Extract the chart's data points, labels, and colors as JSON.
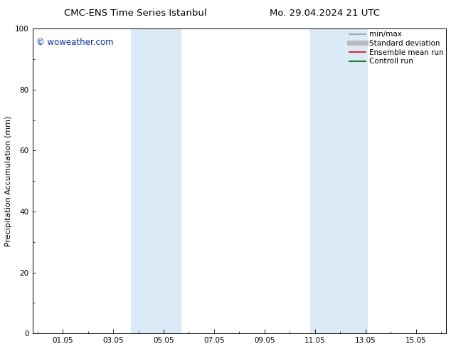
{
  "title_left": "CMC-ENS Time Series Istanbul",
  "title_right": "Mo. 29.04.2024 21 UTC",
  "ylabel": "Precipitation Accumulation (mm)",
  "ylim": [
    0,
    100
  ],
  "yticks": [
    0,
    20,
    40,
    60,
    80,
    100
  ],
  "background_color": "#ffffff",
  "plot_bg_color": "#ffffff",
  "watermark": "© woweather.com",
  "watermark_color": "#0033cc",
  "shaded_bands": [
    {
      "xstart": 3.7,
      "xend": 5.7
    },
    {
      "xstart": 10.8,
      "xend": 13.1
    }
  ],
  "shade_color": "#daeaf7",
  "shade_alpha": 1.0,
  "xtick_labels": [
    "01.05",
    "03.05",
    "05.05",
    "07.05",
    "09.05",
    "11.05",
    "13.05",
    "15.05"
  ],
  "xtick_positions": [
    1.0,
    3.0,
    5.0,
    7.0,
    9.0,
    11.0,
    13.0,
    15.0
  ],
  "legend_items": [
    {
      "label": "min/max",
      "color": "#999999",
      "lw": 1.2,
      "style": "solid"
    },
    {
      "label": "Standard deviation",
      "color": "#bbbbbb",
      "lw": 5,
      "style": "solid"
    },
    {
      "label": "Ensemble mean run",
      "color": "#dd0000",
      "lw": 1.2,
      "style": "solid"
    },
    {
      "label": "Controll run",
      "color": "#006600",
      "lw": 1.2,
      "style": "solid"
    }
  ],
  "xmin": -0.2,
  "xmax": 16.2,
  "minor_tick_count": 1,
  "font_size_title": 9.5,
  "font_size_axis": 8,
  "font_size_ticks": 7.5,
  "font_size_legend": 7.5,
  "font_size_watermark": 8.5
}
